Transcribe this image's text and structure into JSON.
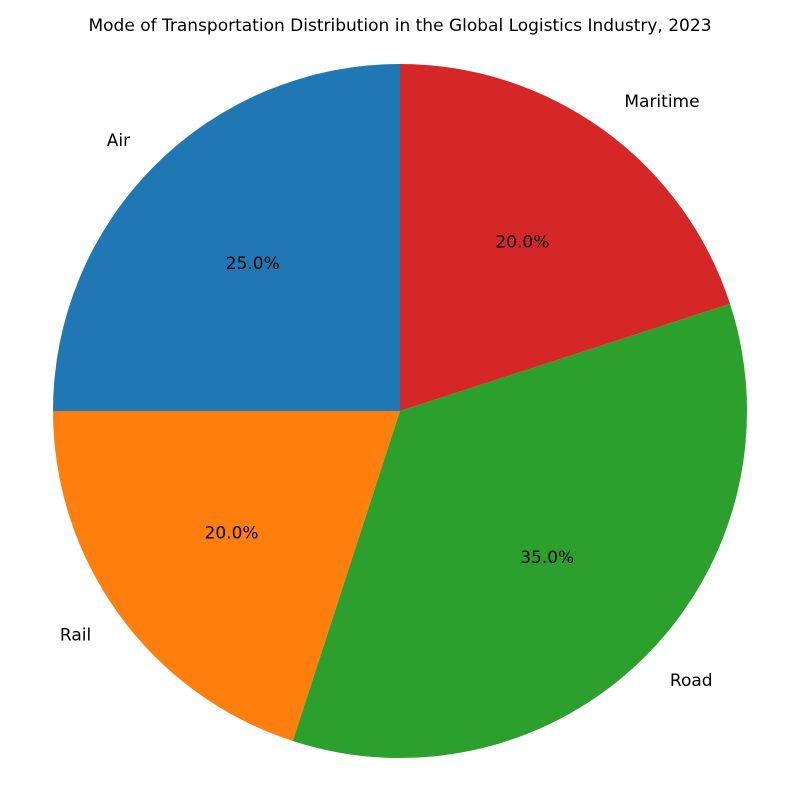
{
  "chart_data": {
    "type": "pie",
    "title": "Mode of Transportation Distribution in the Global Logistics Industry, 2023",
    "slices": [
      {
        "label": "Air",
        "value": 25.0,
        "pct_label": "25.0%",
        "color": "#1f77b4"
      },
      {
        "label": "Rail",
        "value": 20.0,
        "pct_label": "20.0%",
        "color": "#ff7f0e"
      },
      {
        "label": "Road",
        "value": 35.0,
        "pct_label": "35.0%",
        "color": "#2ca02c"
      },
      {
        "label": "Maritime",
        "value": 20.0,
        "pct_label": "20.0%",
        "color": "#d62728"
      }
    ],
    "start_angle_deg": 90,
    "direction": "counterclockwise"
  }
}
